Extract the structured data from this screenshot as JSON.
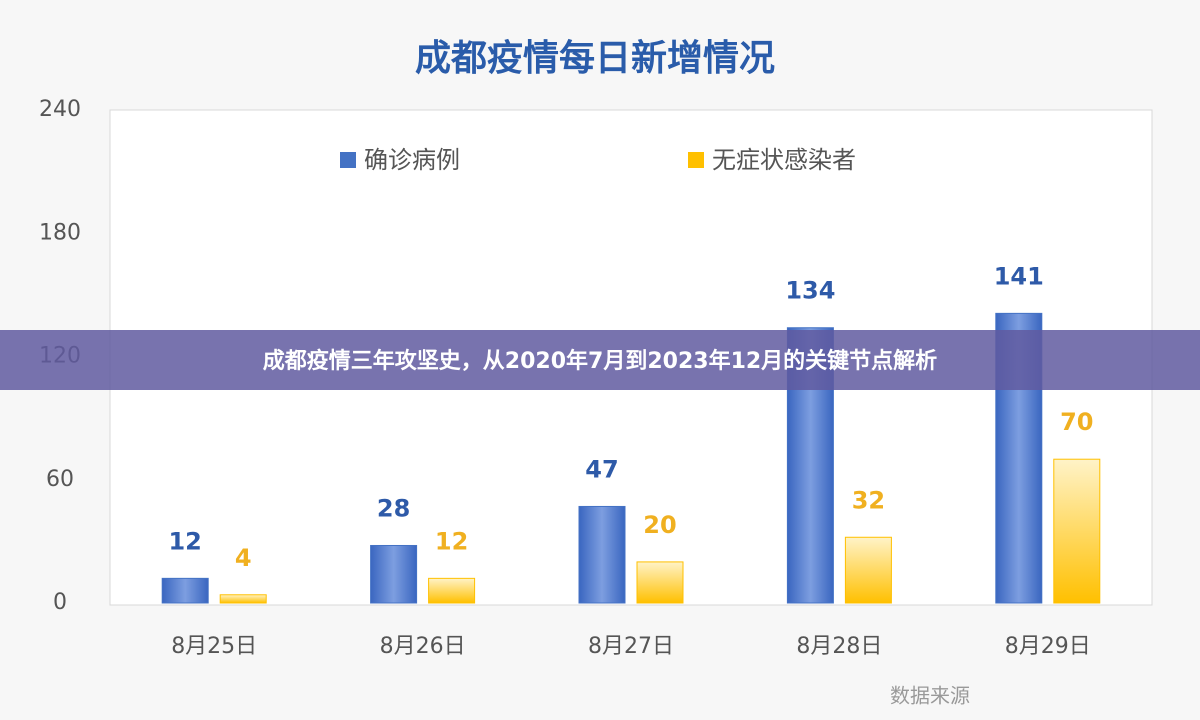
{
  "chart_data": {
    "type": "bar",
    "title": "成都疫情每日新增情况",
    "categories": [
      "8月25日",
      "8月26日",
      "8月27日",
      "8月28日",
      "8月29日"
    ],
    "series": [
      {
        "name": "确诊病例",
        "color": "#4472c4",
        "values": [
          12,
          28,
          47,
          134,
          141
        ]
      },
      {
        "name": "无症状感染者",
        "color": "#ffc000",
        "values": [
          4,
          12,
          20,
          32,
          70
        ]
      }
    ],
    "ylim": [
      0,
      240
    ],
    "yticks": [
      0,
      60,
      120,
      180,
      240
    ],
    "grid": false,
    "legend": "top"
  },
  "banner": {
    "title": "成都疫情三年攻坚史，从2020年7月到2023年12月的关键节点解析"
  },
  "source": "数据来源"
}
